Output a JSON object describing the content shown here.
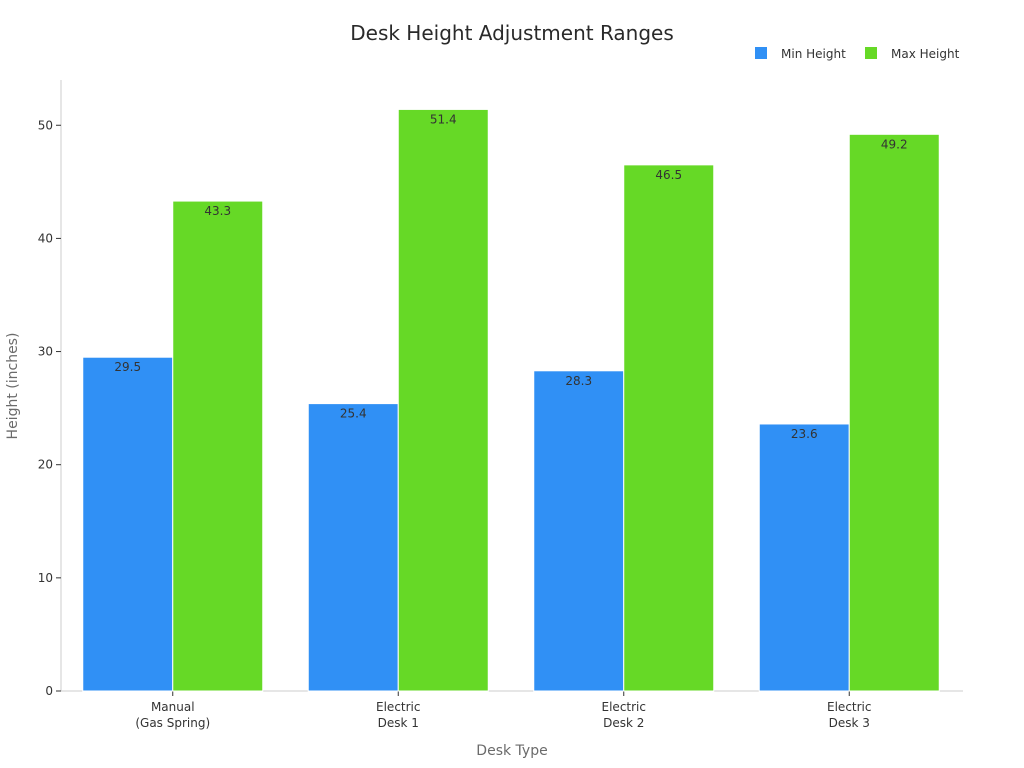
{
  "chart_data": {
    "type": "bar",
    "title": "Desk Height Adjustment Ranges",
    "xlabel": "Desk Type",
    "ylabel": "Height (inches)",
    "categories": [
      [
        "Manual",
        "(Gas Spring)"
      ],
      [
        "Electric",
        "Desk 1"
      ],
      [
        "Electric",
        "Desk 2"
      ],
      [
        "Electric",
        "Desk 3"
      ]
    ],
    "series": [
      {
        "name": "Min Height",
        "color": "#3090f5",
        "values": [
          29.5,
          25.4,
          28.3,
          23.6
        ],
        "labels": [
          "29.5",
          "25.4",
          "28.3",
          "23.6"
        ]
      },
      {
        "name": "Max Height",
        "color": "#66d926",
        "values": [
          43.3,
          51.4,
          46.5,
          49.2
        ],
        "labels": [
          "43.3",
          "51.4",
          "46.5",
          "49.2"
        ]
      }
    ],
    "ylim": [
      0,
      54
    ],
    "yticks": [
      0,
      10,
      20,
      30,
      40,
      50
    ],
    "ytick_labels": [
      "0",
      "10",
      "20",
      "30",
      "40",
      "50"
    ],
    "grid": false,
    "legend_position": "top-right"
  }
}
